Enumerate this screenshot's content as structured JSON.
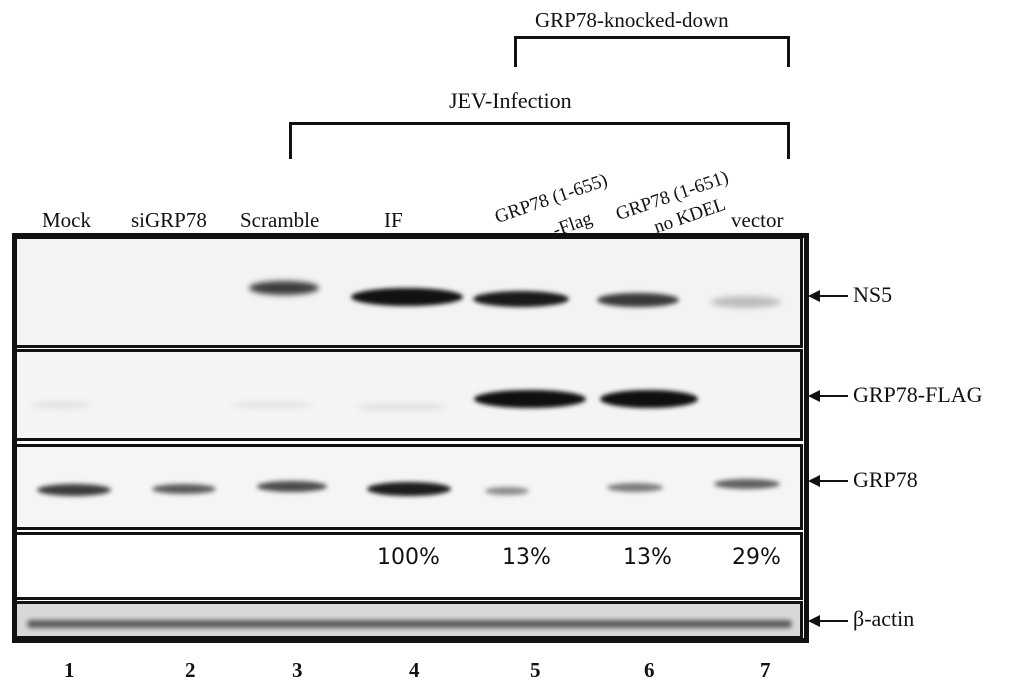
{
  "headers": {
    "knockdown": "GRP78-knocked-down",
    "infection": "JEV-Infection"
  },
  "lanes": [
    {
      "label": "Mock",
      "number": "1"
    },
    {
      "label": "siGRP78",
      "number": "2"
    },
    {
      "label": "Scramble",
      "number": "3"
    },
    {
      "label": "IF",
      "number": "4"
    },
    {
      "label_line1": "GRP78 (1-655)",
      "label_line2": "-Flag",
      "number": "5"
    },
    {
      "label_line1": "GRP78 (1-651)",
      "label_line2": "no KDEL",
      "number": "6"
    },
    {
      "label": "vector",
      "number": "7"
    }
  ],
  "rows": {
    "ns5": "NS5",
    "grp78_flag": "GRP78-FLAG",
    "grp78": "GRP78",
    "actin": "β-actin"
  },
  "percentages": [
    "100%",
    "13%",
    "13%",
    "29%"
  ]
}
